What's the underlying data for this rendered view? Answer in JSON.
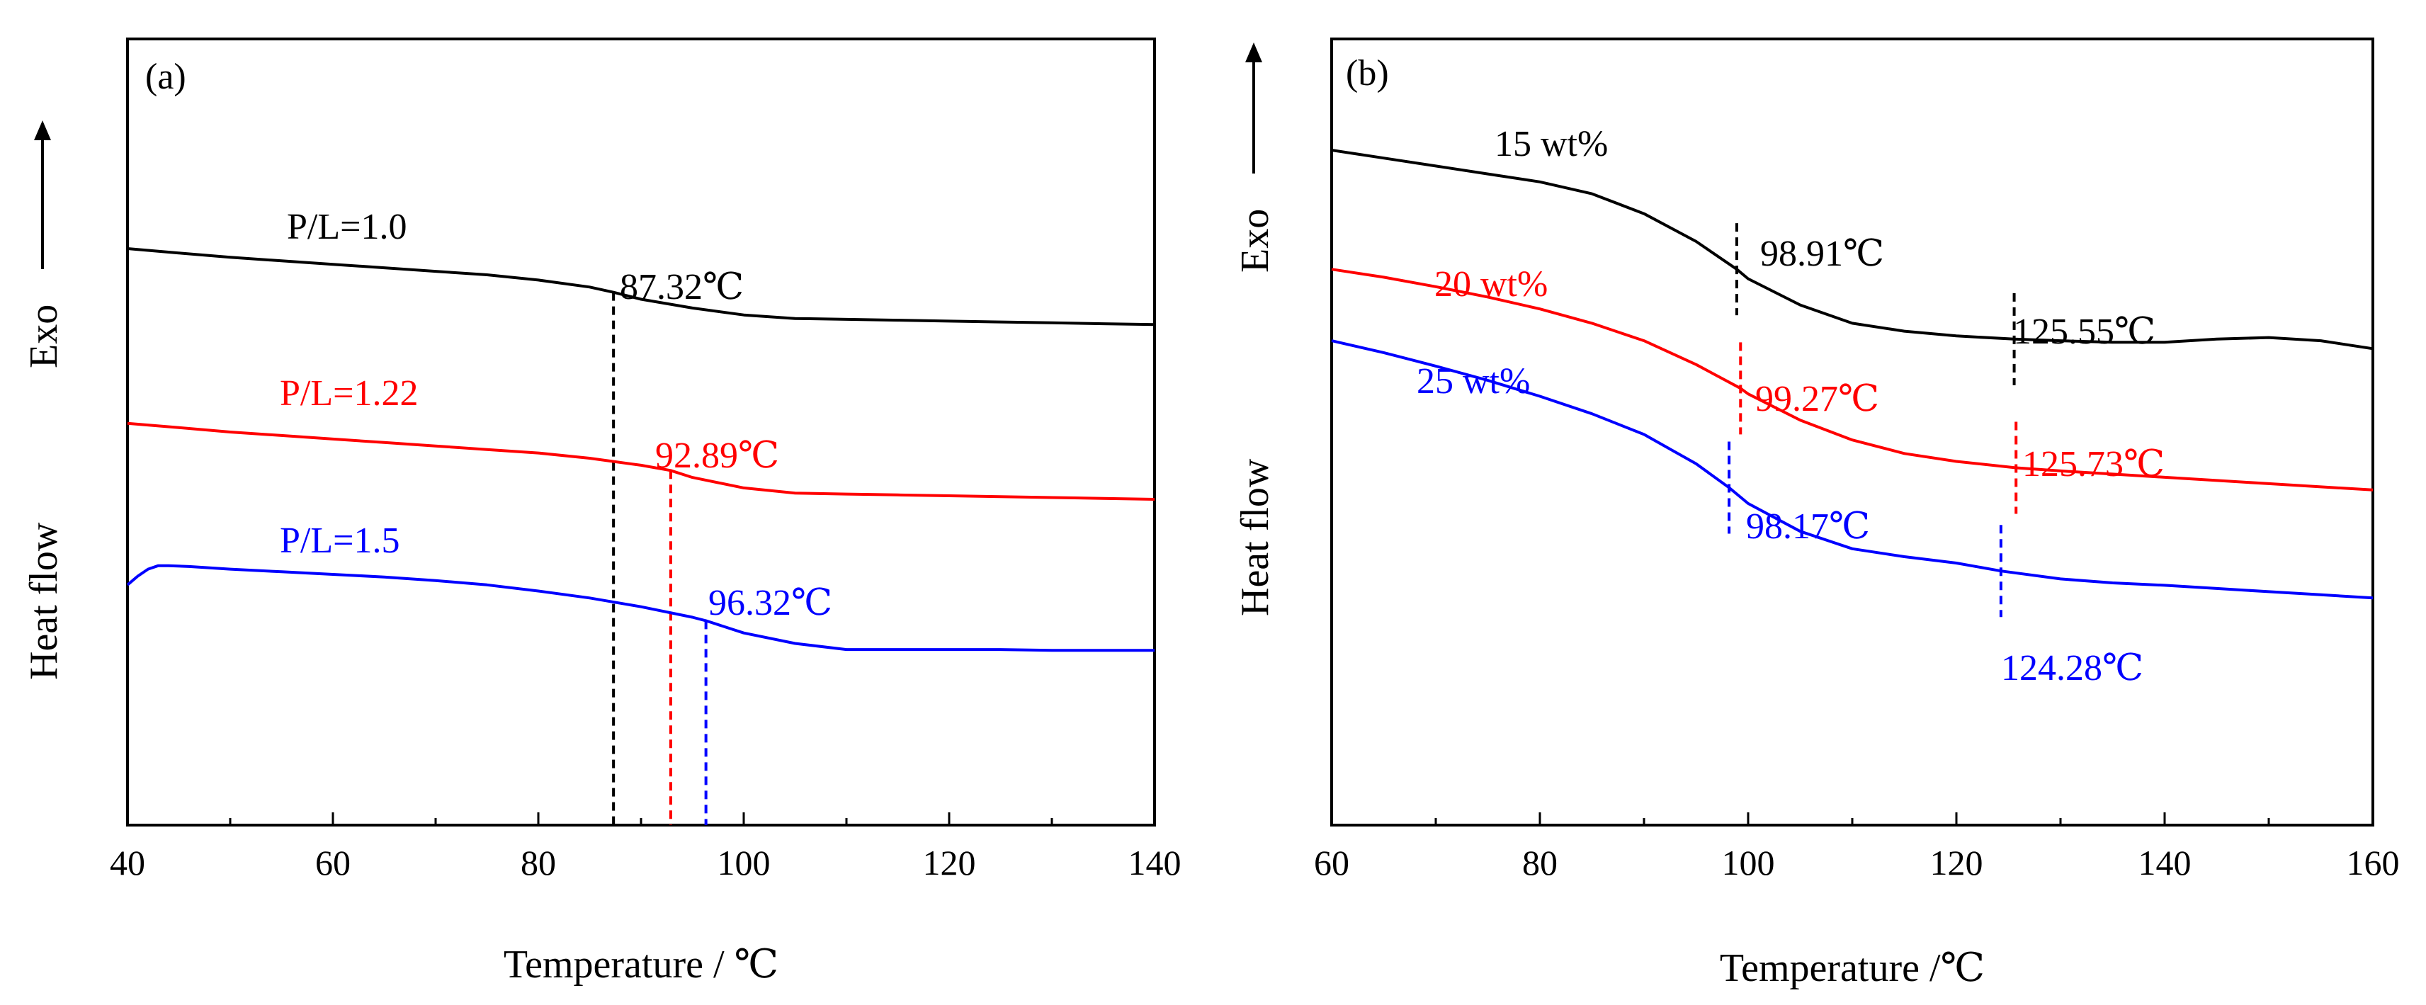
{
  "chart_data": [
    {
      "panel": "(a)",
      "type": "line",
      "xlabel": "Temperature / ℃",
      "ylabel": "Heat flow",
      "exo_label": "Exo",
      "xlim": [
        40,
        140
      ],
      "xticks": [
        40,
        60,
        80,
        100,
        120,
        140
      ],
      "grid": false,
      "series": [
        {
          "name": "P/L=1.0",
          "color": "#000000",
          "x": [
            40,
            45,
            50,
            55,
            60,
            65,
            70,
            75,
            80,
            85,
            87.32,
            90,
            95,
            100,
            105,
            110,
            115,
            120,
            125,
            130,
            135,
            140
          ],
          "y": [
            7.6,
            7.55,
            7.5,
            7.46,
            7.42,
            7.38,
            7.34,
            7.3,
            7.24,
            7.16,
            7.1,
            7.02,
            6.92,
            6.84,
            6.8,
            6.79,
            6.78,
            6.77,
            6.76,
            6.75,
            6.74,
            6.73
          ]
        },
        {
          "name": "P/L=1.22",
          "color": "#ff0000",
          "x": [
            40,
            45,
            50,
            55,
            60,
            65,
            70,
            75,
            80,
            85,
            90,
            92.89,
            95,
            100,
            105,
            110,
            115,
            120,
            125,
            130,
            135,
            140
          ],
          "y": [
            5.6,
            5.55,
            5.5,
            5.46,
            5.42,
            5.38,
            5.34,
            5.3,
            5.26,
            5.2,
            5.12,
            5.06,
            4.98,
            4.86,
            4.8,
            4.79,
            4.78,
            4.77,
            4.76,
            4.75,
            4.74,
            4.73
          ]
        },
        {
          "name": "P/L=1.5",
          "color": "#0000ff",
          "x": [
            40,
            41,
            42,
            43,
            44,
            46,
            50,
            55,
            60,
            65,
            70,
            75,
            80,
            85,
            90,
            95,
            96.32,
            100,
            105,
            110,
            115,
            120,
            125,
            130,
            135,
            140
          ],
          "y": [
            3.75,
            3.85,
            3.93,
            3.97,
            3.97,
            3.96,
            3.93,
            3.9,
            3.87,
            3.84,
            3.8,
            3.75,
            3.68,
            3.6,
            3.5,
            3.38,
            3.34,
            3.2,
            3.08,
            3.01,
            3.01,
            3.01,
            3.01,
            3.0,
            3.0,
            3.0
          ]
        }
      ],
      "annotations": [
        {
          "label": "87.32℃",
          "x": 87.32,
          "color": "#000000"
        },
        {
          "label": "92.89℃",
          "x": 92.89,
          "color": "#ff0000"
        },
        {
          "label": "96.32℃",
          "x": 96.32,
          "color": "#0000ff"
        }
      ]
    },
    {
      "panel": "(b)",
      "type": "line",
      "xlabel": "Temperature /℃",
      "ylabel": "Heat flow",
      "exo_label": "Exo",
      "xlim": [
        60,
        160
      ],
      "xticks": [
        60,
        80,
        100,
        120,
        140,
        160
      ],
      "grid": false,
      "series": [
        {
          "name": "15 wt%",
          "color": "#000000",
          "x": [
            60,
            65,
            70,
            75,
            80,
            85,
            90,
            95,
            98.91,
            100,
            105,
            110,
            115,
            120,
            125.55,
            130,
            135,
            140,
            145,
            150,
            155,
            160
          ],
          "y": [
            9.0,
            8.9,
            8.8,
            8.7,
            8.6,
            8.45,
            8.2,
            7.85,
            7.5,
            7.38,
            7.05,
            6.82,
            6.72,
            6.66,
            6.62,
            6.6,
            6.58,
            6.58,
            6.62,
            6.64,
            6.6,
            6.5
          ]
        },
        {
          "name": "20 wt%",
          "color": "#ff0000",
          "x": [
            60,
            65,
            70,
            75,
            80,
            85,
            90,
            95,
            99.27,
            100,
            105,
            110,
            115,
            120,
            125.73,
            130,
            135,
            140,
            145,
            150,
            155,
            160
          ],
          "y": [
            7.5,
            7.4,
            7.28,
            7.15,
            7.0,
            6.82,
            6.6,
            6.3,
            6.0,
            5.93,
            5.6,
            5.35,
            5.18,
            5.08,
            5.0,
            4.96,
            4.92,
            4.88,
            4.84,
            4.8,
            4.76,
            4.72
          ]
        },
        {
          "name": "25 wt%",
          "color": "#0000ff",
          "x": [
            60,
            65,
            70,
            75,
            80,
            85,
            90,
            95,
            98.17,
            100,
            105,
            110,
            115,
            120,
            124.28,
            130,
            135,
            140,
            145,
            150,
            155,
            160
          ],
          "y": [
            6.6,
            6.45,
            6.28,
            6.1,
            5.9,
            5.68,
            5.42,
            5.05,
            4.75,
            4.55,
            4.2,
            3.98,
            3.88,
            3.8,
            3.7,
            3.6,
            3.55,
            3.52,
            3.48,
            3.44,
            3.4,
            3.36
          ]
        }
      ],
      "annotations": [
        {
          "label": "98.91℃",
          "x": 98.91,
          "color": "#000000"
        },
        {
          "label": "125.55℃",
          "x": 125.55,
          "color": "#000000"
        },
        {
          "label": "99.27℃",
          "x": 99.27,
          "color": "#ff0000"
        },
        {
          "label": "125.73℃",
          "x": 125.73,
          "color": "#ff0000"
        },
        {
          "label": "98.17℃",
          "x": 98.17,
          "color": "#0000ff"
        },
        {
          "label": "124.28℃",
          "x": 124.28,
          "color": "#0000ff"
        }
      ]
    }
  ]
}
